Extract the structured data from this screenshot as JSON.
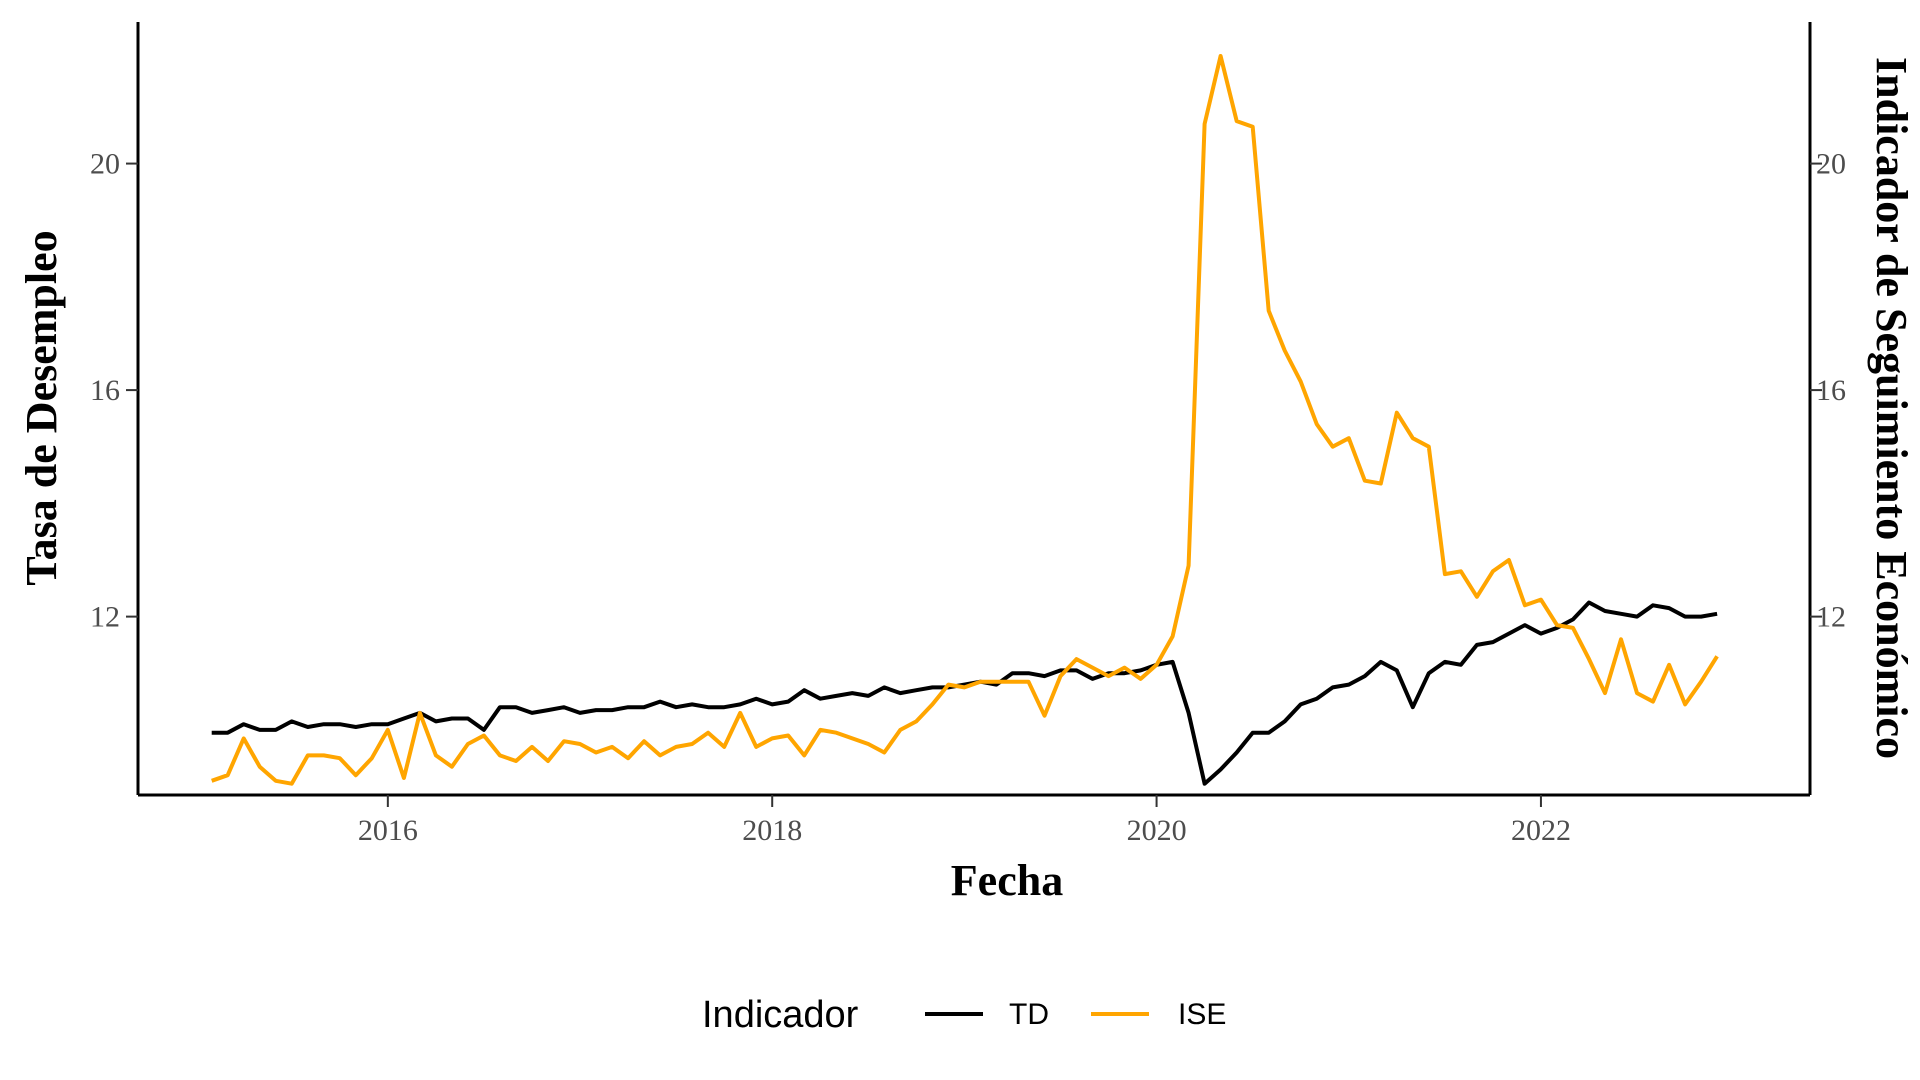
{
  "chart_data": {
    "type": "line",
    "title": "",
    "xlabel": "Fecha",
    "ylabel": "Tasa de Desempleo",
    "ylabel_right": "Indicador de Seguimiento Económico",
    "x_ticks": [
      "2016",
      "2018",
      "2020",
      "2022"
    ],
    "y_ticks": [
      "12",
      "16",
      "20"
    ],
    "y_right_ticks": [
      "12",
      "16",
      "20"
    ],
    "xlim": [
      2014.7,
      2023.4
    ],
    "ylim": [
      8.85,
      22.5
    ],
    "grid": false,
    "legend": {
      "title": "Indicador",
      "position": "bottom"
    },
    "x_start": "2015-02",
    "x_step": "1 month",
    "series": [
      {
        "name": "TD",
        "color": "#000000",
        "values": [
          9.95,
          9.95,
          10.1,
          10.0,
          10.0,
          10.15,
          10.05,
          10.1,
          10.1,
          10.05,
          10.1,
          10.1,
          10.2,
          10.3,
          10.15,
          10.2,
          10.2,
          10.0,
          10.4,
          10.4,
          10.3,
          10.35,
          10.4,
          10.3,
          10.35,
          10.35,
          10.4,
          10.4,
          10.5,
          10.4,
          10.45,
          10.4,
          10.4,
          10.45,
          10.55,
          10.45,
          10.5,
          10.7,
          10.55,
          10.6,
          10.65,
          10.6,
          10.75,
          10.65,
          10.7,
          10.75,
          10.75,
          10.8,
          10.85,
          10.8,
          11.0,
          11.0,
          10.95,
          11.05,
          11.05,
          10.9,
          11.0,
          11.0,
          11.05,
          11.15,
          11.2,
          10.3,
          9.05,
          9.3,
          9.6,
          9.95,
          9.95,
          10.15,
          10.45,
          10.55,
          10.75,
          10.8,
          10.95,
          11.2,
          11.05,
          10.4,
          11.0,
          11.2,
          11.15,
          11.5,
          11.55,
          11.7,
          11.85,
          11.7,
          11.8,
          11.95,
          12.25,
          12.1,
          12.05,
          12.0,
          12.2,
          12.15,
          12.0,
          12.0,
          12.05
        ]
      },
      {
        "name": "ISE",
        "color": "#FFA500",
        "values": [
          9.1,
          9.2,
          9.85,
          9.35,
          9.1,
          9.05,
          9.55,
          9.55,
          9.5,
          9.2,
          9.5,
          10.0,
          9.15,
          10.3,
          9.55,
          9.35,
          9.75,
          9.9,
          9.55,
          9.45,
          9.7,
          9.45,
          9.8,
          9.75,
          9.6,
          9.7,
          9.5,
          9.8,
          9.55,
          9.7,
          9.75,
          9.95,
          9.7,
          10.3,
          9.7,
          9.85,
          9.9,
          9.55,
          10.0,
          9.95,
          9.85,
          9.75,
          9.6,
          10.0,
          10.15,
          10.45,
          10.8,
          10.75,
          10.85,
          10.85,
          10.85,
          10.85,
          10.25,
          10.95,
          11.25,
          11.1,
          10.95,
          11.1,
          10.9,
          11.15,
          11.65,
          12.9,
          20.7,
          21.9,
          20.75,
          20.65,
          17.4,
          16.7,
          16.15,
          15.4,
          15.0,
          15.15,
          14.4,
          14.35,
          15.6,
          15.15,
          15.0,
          12.75,
          12.8,
          12.35,
          12.8,
          13.0,
          12.2,
          12.3,
          11.85,
          11.8,
          11.25,
          10.65,
          11.6,
          10.65,
          10.5,
          11.15,
          10.45,
          10.85,
          11.3
        ]
      }
    ]
  }
}
